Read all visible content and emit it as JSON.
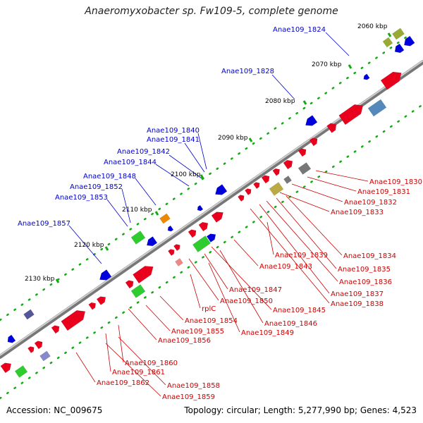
{
  "title": "Anaeromyxobacter sp. Fw109-5, complete genome",
  "footer": {
    "accession": "Accession: NC_009675",
    "summary": "Topology: circular; Length: 5,277,990 bp; Genes: 4,523"
  },
  "colors": {
    "forward_gene": "#e8001c",
    "reverse_gene": "#0000dd",
    "rrna_green": "#2ecc2e",
    "misc_olive": "#99aa33",
    "misc_grey": "#777777",
    "misc_orange": "#ee8800",
    "misc_steel": "#5588bb",
    "misc_purple": "#555599",
    "misc_khaki": "#bbaa44",
    "tick_green": "#11aa11",
    "backbone": "#888888",
    "label_forward": "#cc0000",
    "label_reverse": "#0000cc"
  },
  "ticks": [
    {
      "label": "2060 kbp"
    },
    {
      "label": "2070 kbp"
    },
    {
      "label": "2080 kbp"
    },
    {
      "label": "2090 kbp"
    },
    {
      "label": "2100 kbp"
    },
    {
      "label": "2110 kbp"
    },
    {
      "label": "2120 kbp"
    },
    {
      "label": "2130 kbp"
    }
  ],
  "labels_top": [
    {
      "name": "Anae109_1824"
    },
    {
      "name": "Anae109_1828"
    },
    {
      "name": "Anae109_1840"
    },
    {
      "name": "Anae109_1841"
    },
    {
      "name": "Anae109_1842"
    },
    {
      "name": "Anae109_1844"
    },
    {
      "name": "Anae109_1848"
    },
    {
      "name": "Anae109_1852"
    },
    {
      "name": "Anae109_1853"
    },
    {
      "name": "Anae109_1857"
    }
  ],
  "labels_bottom": [
    {
      "name": "Anae109_1830"
    },
    {
      "name": "Anae109_1831"
    },
    {
      "name": "Anae109_1832"
    },
    {
      "name": "Anae109_1833"
    },
    {
      "name": "Anae109_1834"
    },
    {
      "name": "Anae109_1835"
    },
    {
      "name": "Anae109_1836"
    },
    {
      "name": "Anae109_1837"
    },
    {
      "name": "Anae109_1838"
    },
    {
      "name": "Anae109_1839"
    },
    {
      "name": "Anae109_1843"
    },
    {
      "name": "Anae109_1847"
    },
    {
      "name": "Anae109_1850"
    },
    {
      "name": "Anae109_1845"
    },
    {
      "name": "Anae109_1846"
    },
    {
      "name": "rplC"
    },
    {
      "name": "Anae109_1849"
    },
    {
      "name": "Anae109_1854"
    },
    {
      "name": "Anae109_1855"
    },
    {
      "name": "Anae109_1856"
    },
    {
      "name": "Anae109_1860"
    },
    {
      "name": "Anae109_1861"
    },
    {
      "name": "Anae109_1858"
    },
    {
      "name": "Anae109_1862"
    },
    {
      "name": "Anae109_1859"
    }
  ]
}
